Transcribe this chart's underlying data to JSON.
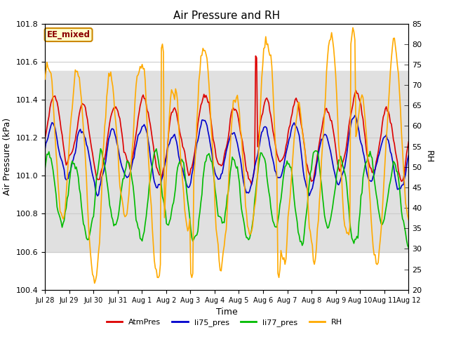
{
  "title": "Air Pressure and RH",
  "xlabel": "Time",
  "ylabel_left": "Air Pressure (kPa)",
  "ylabel_right": "RH",
  "annotation": "EE_mixed",
  "ylim_left": [
    100.4,
    101.8
  ],
  "ylim_right": [
    20,
    85
  ],
  "yticks_left": [
    100.4,
    100.6,
    100.8,
    101.0,
    101.2,
    101.4,
    101.6,
    101.8
  ],
  "yticks_right": [
    20,
    25,
    30,
    35,
    40,
    45,
    50,
    55,
    60,
    65,
    70,
    75,
    80,
    85
  ],
  "xtick_labels": [
    "Jul 28",
    "Jul 29",
    "Jul 30",
    "Jul 31",
    "Aug 1",
    "Aug 2",
    "Aug 3",
    "Aug 4",
    "Aug 5",
    "Aug 6",
    "Aug 7",
    "Aug 8",
    "Aug 9",
    "Aug 10",
    "Aug 11",
    "Aug 12"
  ],
  "colors": {
    "AtmPres": "#dd0000",
    "li75_pres": "#0000cc",
    "li77_pres": "#00bb00",
    "RH": "#ffaa00"
  },
  "legend_labels": [
    "AtmPres",
    "li75_pres",
    "li77_pres",
    "RH"
  ],
  "shaded_region": [
    100.6,
    101.55
  ],
  "background_color": "#ffffff",
  "grid_color": "#cccccc"
}
